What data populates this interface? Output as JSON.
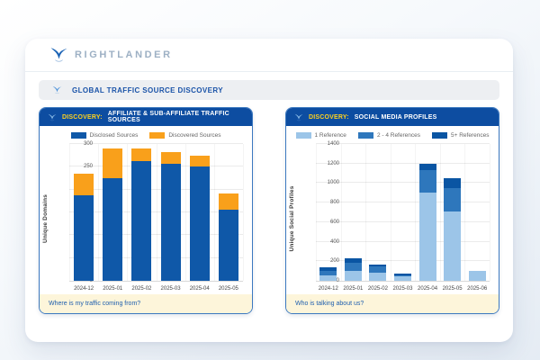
{
  "brand": {
    "wordmark": "RIGHTLANDER",
    "icon": "bird-logo-icon",
    "color": "#1b63b5"
  },
  "section": {
    "title": "GLOBAL TRAFFIC SOURCE DISCOVERY",
    "icon": "bird-icon",
    "title_color": "#1a53a8"
  },
  "colors": {
    "panel_header": "#0d4da1",
    "discovery_label": "#ffd21e",
    "footer_bg": "#fdf5da",
    "footer_text": "#1f5fae",
    "panel_border": "#3c79c0"
  },
  "chart_data": [
    {
      "type": "bar",
      "stacked": true,
      "panel_label": "DISCOVERY:",
      "title": "AFFILIATE & SUB-AFFILIATE TRAFFIC SOURCES",
      "categories": [
        "2024-12",
        "2025-01",
        "2025-02",
        "2025-03",
        "2025-04",
        "2025-05"
      ],
      "series": [
        {
          "name": "Disclosed Sources",
          "color": "#0f58a8",
          "values": [
            188,
            225,
            263,
            257,
            250,
            155
          ]
        },
        {
          "name": "Discovered Sources",
          "color": "#f9a01b",
          "values": [
            47,
            65,
            27,
            26,
            25,
            37
          ]
        }
      ],
      "xlabel": "",
      "ylabel": "Unique Domains",
      "ylim": [
        0,
        300
      ],
      "ytick_step": 50,
      "grid": true,
      "legend_position": "top",
      "footer_question": "Where is my traffic coming from?"
    },
    {
      "type": "bar",
      "stacked": true,
      "panel_label": "DISCOVERY:",
      "title": "SOCIAL MEDIA PROFILES",
      "categories": [
        "2024-12",
        "2025-01",
        "2025-02",
        "2025-03",
        "2025-04",
        "2025-05",
        "2025-06"
      ],
      "series": [
        {
          "name": "1 Reference",
          "color": "#9cc5e8",
          "values": [
            60,
            105,
            85,
            45,
            900,
            710,
            100
          ]
        },
        {
          "name": "2 - 4 References",
          "color": "#2e77bc",
          "values": [
            45,
            75,
            60,
            15,
            230,
            240,
            5
          ]
        },
        {
          "name": "5+ References",
          "color": "#0a55a3",
          "values": [
            30,
            50,
            25,
            10,
            70,
            100,
            0
          ]
        }
      ],
      "xlabel": "",
      "ylabel": "Unique Social Profiles",
      "ylim": [
        0,
        1400
      ],
      "ytick_step": 200,
      "grid": true,
      "legend_position": "top",
      "footer_question": "Who is talking about us?"
    }
  ]
}
